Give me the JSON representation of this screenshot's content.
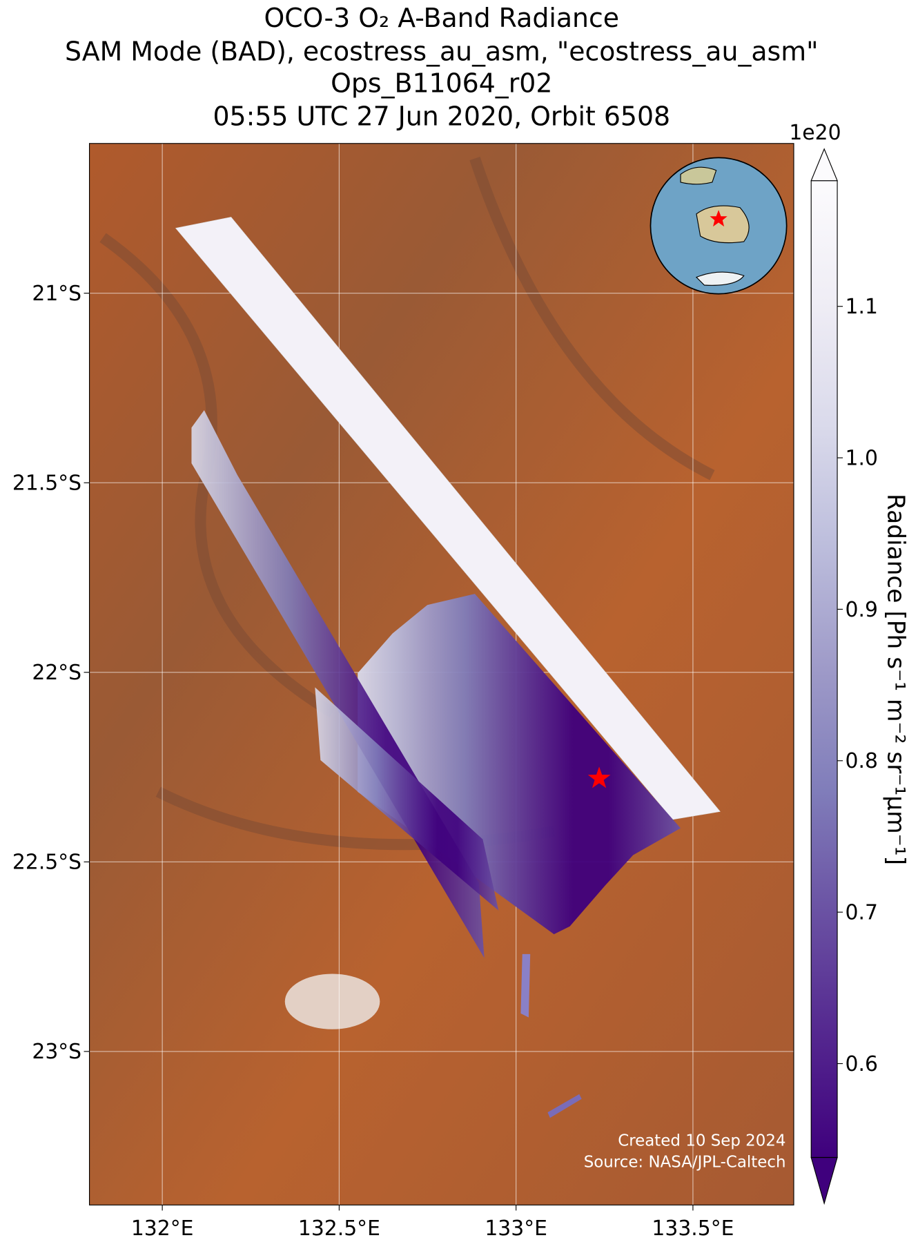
{
  "chart_data": {
    "type": "map",
    "title": [
      "OCO-3 O₂ A-Band Radiance",
      "SAM Mode (BAD), ecostress_au_asm, \"ecostress_au_asm\"",
      "Ops_B11064_r02",
      "05:55 UTC 27 Jun 2020, Orbit 6508"
    ],
    "xlim": [
      131.794,
      133.785
    ],
    "ylim": [
      -23.405,
      -20.605
    ],
    "xticks": [
      {
        "value": 132,
        "label": "132°E"
      },
      {
        "value": 132.5,
        "label": "132.5°E"
      },
      {
        "value": 133,
        "label": "133°E"
      },
      {
        "value": 133.5,
        "label": "133.5°E"
      }
    ],
    "yticks": [
      {
        "value": -21,
        "label": "21°S"
      },
      {
        "value": -21.5,
        "label": "21.5°S"
      },
      {
        "value": -22,
        "label": "22°S"
      },
      {
        "value": -22.5,
        "label": "22.5°S"
      },
      {
        "value": -23,
        "label": "23°S"
      }
    ],
    "grid": true,
    "target": {
      "lon": 133.235,
      "lat": -22.28,
      "color": "#ff0000"
    },
    "colorbar": {
      "label": "Radiance [Ph s⁻¹ m⁻² sr⁻¹μm⁻¹]",
      "offset_label": "1e20",
      "clim": [
        0.538,
        1.183
      ],
      "ticks": [
        0.6,
        0.7,
        0.8,
        0.9,
        {
          "value": 1,
          "label": "1.0"
        },
        1.1
      ],
      "colormap": [
        "#3f007d",
        "#54278f",
        "#6a51a3",
        "#807dba",
        "#9e9ac8",
        "#bcbddc",
        "#dadaeb",
        "#efedf5",
        "#fcfbfd"
      ]
    },
    "notes": [
      "Created 10 Sep 2024",
      "Source: NASA/JPL-Caltech"
    ]
  }
}
